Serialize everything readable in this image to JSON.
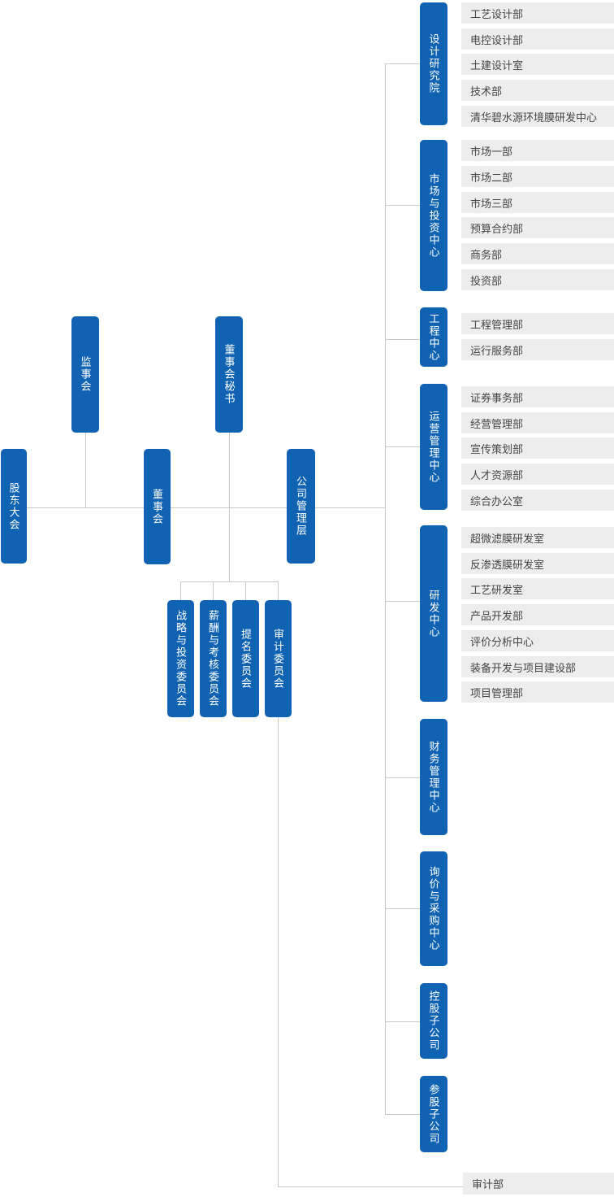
{
  "org_chart": {
    "governance": {
      "shareholders": {
        "label": "股东大会"
      },
      "supervisory_board": {
        "label": "监事会"
      },
      "board_secretary": {
        "label": "董事会秘书"
      },
      "board_of_directors": {
        "label": "董事会"
      },
      "management": {
        "label": "公司管理层"
      }
    },
    "committees": [
      {
        "label": "战略与投资委员会"
      },
      {
        "label": "薪酬与考核委员会"
      },
      {
        "label": "提名委员会"
      },
      {
        "label": "审计委员会"
      }
    ],
    "centers": [
      {
        "name": "design-institute",
        "label": "设计研究院",
        "departments": [
          "工艺设计部",
          "电控设计部",
          "土建设计室",
          "技术部",
          "清华碧水源环境膜研发中心"
        ]
      },
      {
        "name": "marketing-investment-center",
        "label": "市场与投资中心",
        "departments": [
          "市场一部",
          "市场二部",
          "市场三部",
          "预算合约部",
          "商务部",
          "投资部"
        ]
      },
      {
        "name": "engineering-center",
        "label": "工程中心",
        "departments": [
          "工程管理部",
          "运行服务部"
        ]
      },
      {
        "name": "operations-management-center",
        "label": "运营管理中心",
        "departments": [
          "证券事务部",
          "经营管理部",
          "宣传策划部",
          "人才资源部",
          "综合办公室"
        ]
      },
      {
        "name": "rnd-center",
        "label": "研发中心",
        "departments": [
          "超微滤膜研发室",
          "反渗透膜研发室",
          "工艺研发室",
          "产品开发部",
          "评价分析中心",
          "装备开发与项目建设部",
          "项目管理部"
        ]
      },
      {
        "name": "finance-management-center",
        "label": "财务管理中心",
        "departments": []
      },
      {
        "name": "inquiry-procurement-center",
        "label": "询价与采购中心",
        "departments": []
      },
      {
        "name": "holding-subsidiaries",
        "label": "控股子公司",
        "departments": []
      },
      {
        "name": "equity-subsidiaries",
        "label": "参股子公司",
        "departments": []
      }
    ],
    "audit_department": {
      "label": "审计部"
    },
    "colors": {
      "box_blue": "#1063b2",
      "bar_gray": "#ededed",
      "line_gray": "#c9c9c9",
      "bar_text": "#454545",
      "box_text": "#ffffff"
    }
  }
}
